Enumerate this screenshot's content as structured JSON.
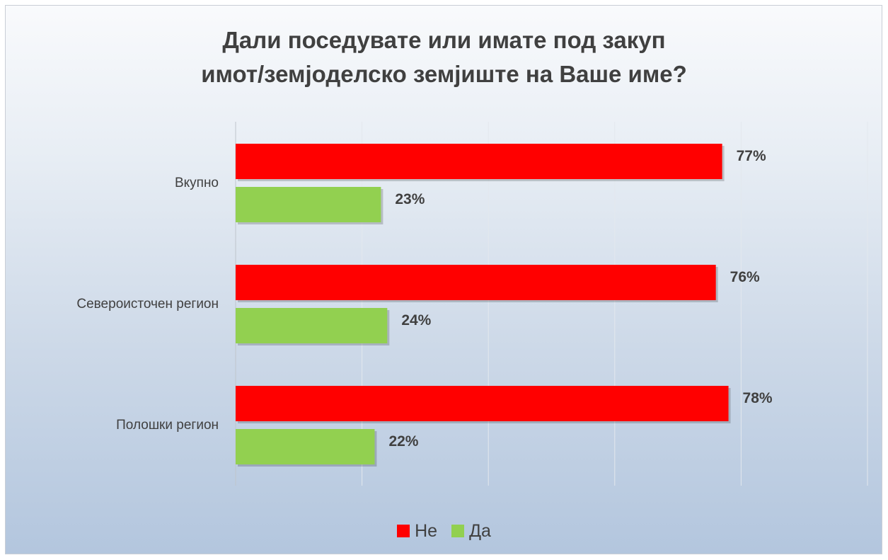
{
  "chart_data": {
    "type": "bar",
    "orientation": "horizontal",
    "title": [
      "Дали поседувате или имате под закуп",
      "имот/земјоделско земјиште на Ваше име?"
    ],
    "categories": [
      "Вкупно",
      "Североисточен регион",
      "Полошки регион"
    ],
    "series": [
      {
        "name": "Не",
        "color": "#ff0000",
        "values": [
          77,
          76,
          78
        ],
        "labels": [
          "77%",
          "76%",
          "78%"
        ]
      },
      {
        "name": "Да",
        "color": "#92d050",
        "values": [
          23,
          24,
          22
        ],
        "labels": [
          "23%",
          "24%",
          "22%"
        ]
      }
    ],
    "xlim": [
      0,
      100
    ],
    "grid": true,
    "legend_position": "bottom"
  }
}
